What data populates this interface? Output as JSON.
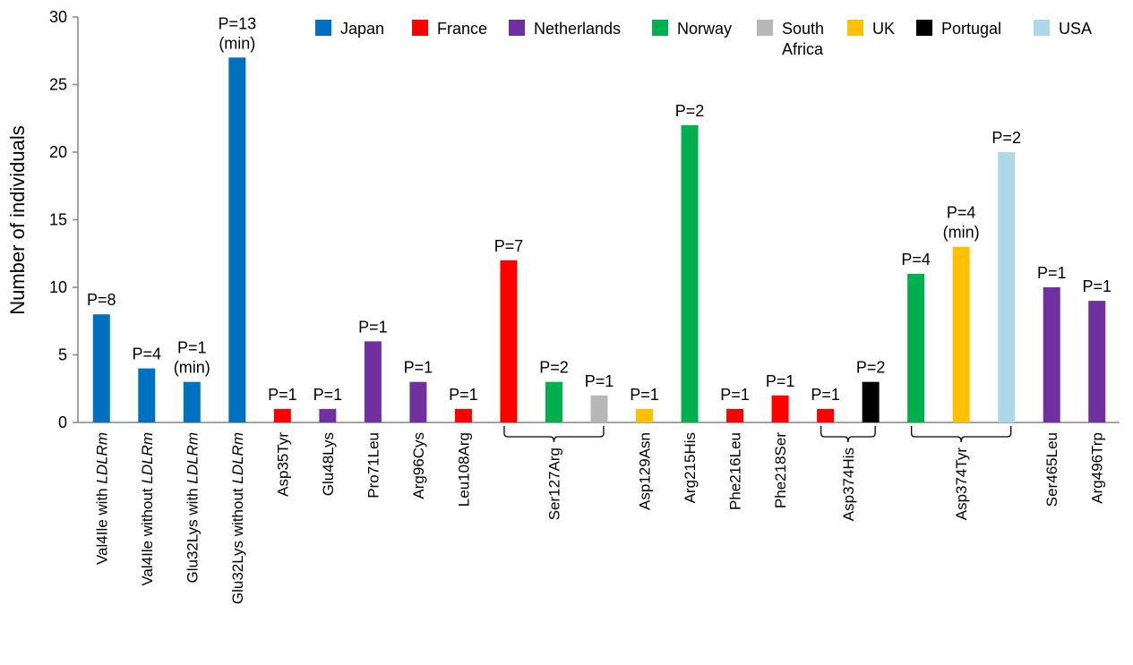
{
  "chart_data": {
    "type": "bar",
    "ylabel": "Number of individuals",
    "ylim": [
      0,
      30
    ],
    "yticks": [
      0,
      5,
      10,
      15,
      20,
      25,
      30
    ],
    "grid": false,
    "legend_position": "top-right",
    "legend": [
      {
        "name": "Japan",
        "color": "#0070c0"
      },
      {
        "name": "France",
        "color": "#ff0000"
      },
      {
        "name": "Netherlands",
        "color": "#7030a0"
      },
      {
        "name": "Norway",
        "color": "#00b050"
      },
      {
        "name": "South Africa",
        "color": "#b7b7b7"
      },
      {
        "name": "UK",
        "color": "#ffc000"
      },
      {
        "name": "Portugal",
        "color": "#000000"
      },
      {
        "name": "USA",
        "color": "#add8e6"
      }
    ],
    "bars": [
      {
        "country": "Japan",
        "value": 8,
        "label": [
          "P=8"
        ]
      },
      {
        "country": "Japan",
        "value": 4,
        "label": [
          "P=4"
        ]
      },
      {
        "country": "Japan",
        "value": 3,
        "label": [
          "P=1",
          "(min)"
        ]
      },
      {
        "country": "Japan",
        "value": 27,
        "label": [
          "P=13",
          "(min)"
        ]
      },
      {
        "country": "France",
        "value": 1,
        "label": [
          "P=1"
        ]
      },
      {
        "country": "Netherlands",
        "value": 1,
        "label": [
          "P=1"
        ]
      },
      {
        "country": "Netherlands",
        "value": 6,
        "label": [
          "P=1"
        ]
      },
      {
        "country": "Netherlands",
        "value": 3,
        "label": [
          "P=1"
        ]
      },
      {
        "country": "France",
        "value": 1,
        "label": [
          "P=1"
        ]
      },
      {
        "country": "France",
        "value": 12,
        "label": [
          "P=7"
        ]
      },
      {
        "country": "Norway",
        "value": 3,
        "label": [
          "P=2"
        ]
      },
      {
        "country": "South Africa",
        "value": 2,
        "label": [
          "P=1"
        ]
      },
      {
        "country": "UK",
        "value": 1,
        "label": [
          "P=1"
        ]
      },
      {
        "country": "Norway",
        "value": 22,
        "label": [
          "P=2"
        ]
      },
      {
        "country": "France",
        "value": 1,
        "label": [
          "P=1"
        ]
      },
      {
        "country": "France",
        "value": 2,
        "label": [
          "P=1"
        ]
      },
      {
        "country": "France",
        "value": 1,
        "label": [
          "P=1"
        ]
      },
      {
        "country": "Portugal",
        "value": 3,
        "label": [
          "P=2"
        ]
      },
      {
        "country": "Norway",
        "value": 11,
        "label": [
          "P=4"
        ]
      },
      {
        "country": "UK",
        "value": 13,
        "label": [
          "P=4",
          "(min)"
        ]
      },
      {
        "country": "USA",
        "value": 20,
        "label": [
          "P=2"
        ]
      },
      {
        "country": "Netherlands",
        "value": 10,
        "label": [
          "P=1"
        ]
      },
      {
        "country": "Netherlands",
        "value": 9,
        "label": [
          "P=1"
        ]
      }
    ],
    "categories": [
      {
        "bars": [
          0
        ],
        "label": [
          {
            "t": "Val4Ile with "
          },
          {
            "t": "LDLRm",
            "i": true
          }
        ]
      },
      {
        "bars": [
          1
        ],
        "label": [
          {
            "t": "Val4Ile without "
          },
          {
            "t": "LDLRm",
            "i": true
          }
        ]
      },
      {
        "bars": [
          2
        ],
        "label": [
          {
            "t": "Glu32Lys with "
          },
          {
            "t": "LDLRm",
            "i": true
          }
        ]
      },
      {
        "bars": [
          3
        ],
        "label": [
          {
            "t": "Glu32Lys without "
          },
          {
            "t": "LDLRm",
            "i": true
          }
        ]
      },
      {
        "bars": [
          4
        ],
        "label": [
          {
            "t": "Asp35Tyr"
          }
        ]
      },
      {
        "bars": [
          5
        ],
        "label": [
          {
            "t": "Glu48Lys"
          }
        ]
      },
      {
        "bars": [
          6
        ],
        "label": [
          {
            "t": "Pro71Leu"
          }
        ]
      },
      {
        "bars": [
          7
        ],
        "label": [
          {
            "t": "Arg96Cys"
          }
        ]
      },
      {
        "bars": [
          8
        ],
        "label": [
          {
            "t": "Leu108Arg"
          }
        ]
      },
      {
        "bars": [
          9,
          10,
          11
        ],
        "label": [
          {
            "t": "Ser127Arg"
          }
        ]
      },
      {
        "bars": [
          12
        ],
        "label": [
          {
            "t": "Asp129Asn"
          }
        ]
      },
      {
        "bars": [
          13
        ],
        "label": [
          {
            "t": "Arg215His"
          }
        ]
      },
      {
        "bars": [
          14
        ],
        "label": [
          {
            "t": "Phe216Leu"
          }
        ]
      },
      {
        "bars": [
          15
        ],
        "label": [
          {
            "t": "Phe218Ser"
          }
        ]
      },
      {
        "bars": [
          16,
          17
        ],
        "label": [
          {
            "t": "Asp374His"
          }
        ]
      },
      {
        "bars": [
          18,
          19,
          20
        ],
        "label": [
          {
            "t": "Asp374Tyr"
          }
        ]
      },
      {
        "bars": [
          21
        ],
        "label": [
          {
            "t": "Ser465Leu"
          }
        ]
      },
      {
        "bars": [
          22
        ],
        "label": [
          {
            "t": "Arg496Trp"
          }
        ]
      }
    ]
  }
}
